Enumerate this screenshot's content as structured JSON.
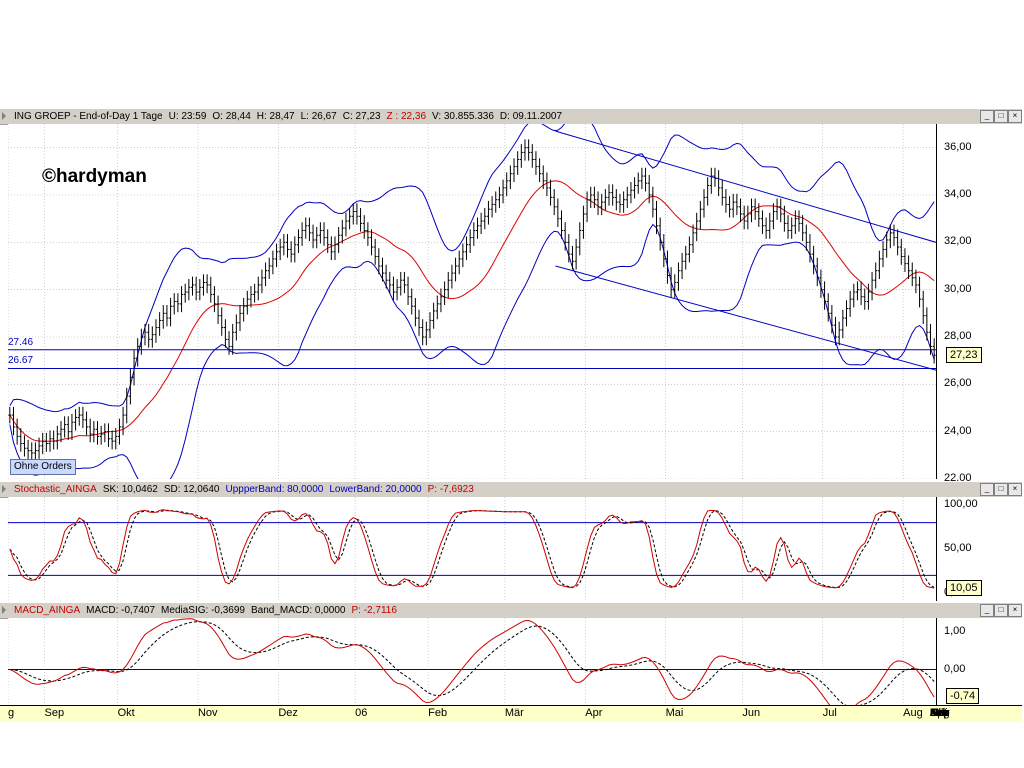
{
  "price_panel": {
    "header": [
      {
        "text": "ING GROEP - End-of-Day 1 Tage",
        "color": "black"
      },
      {
        "text": "U: 23:59",
        "color": "black"
      },
      {
        "text": "O: 28,44",
        "color": "black"
      },
      {
        "text": "H: 28,47",
        "color": "black"
      },
      {
        "text": "L: 26,67",
        "color": "black"
      },
      {
        "text": "C: 27,23",
        "color": "black"
      },
      {
        "text": "Z : 22,36",
        "color": "red"
      },
      {
        "text": "V: 30.855.336",
        "color": "black"
      },
      {
        "text": "D: 09.11.2007",
        "color": "black"
      }
    ],
    "watermark": "©hardyman",
    "button": "Ohne Orders",
    "last_value": "27,23",
    "hlines": [
      {
        "label": "27.46",
        "value": 27.46
      },
      {
        "label": "26.67",
        "value": 26.67
      }
    ],
    "yticks": [
      "22,00",
      "24,00",
      "26,00",
      "28,00",
      "30,00",
      "32,00",
      "34,00",
      "36,00"
    ]
  },
  "stoch_panel": {
    "header": [
      {
        "text": "Stochastic_AINGA",
        "color": "red"
      },
      {
        "text": "SK: 10,0462",
        "color": "black"
      },
      {
        "text": "SD: 12,0640",
        "color": "black"
      },
      {
        "text": "UppperBand: 80,0000",
        "color": "blue"
      },
      {
        "text": "LowerBand: 20,0000",
        "color": "blue"
      },
      {
        "text": "P: -7,6923",
        "color": "red"
      }
    ],
    "last_value": "10,05",
    "yticks": [
      "0,00",
      "50,00",
      "100,00"
    ]
  },
  "macd_panel": {
    "header": [
      {
        "text": "MACD_AINGA",
        "color": "red"
      },
      {
        "text": "MACD: -0,7407",
        "color": "black"
      },
      {
        "text": "MediaSIG: -0,3699",
        "color": "black"
      },
      {
        "text": "Band_MACD: 0,0000",
        "color": "black"
      },
      {
        "text": "P: -2,7116",
        "color": "red"
      }
    ],
    "last_value": "-0,74",
    "yticks": [
      "1,00",
      "0,00"
    ]
  },
  "window_buttons": [
    "_",
    "□",
    "×"
  ],
  "xaxis": {
    "labels": [
      "g",
      "Sep",
      "Okt",
      "Nov",
      "Dez",
      "06",
      "Feb",
      "Mär",
      "Apr",
      "Mai",
      "Jun",
      "Jul",
      "Aug",
      "Sep",
      "Okt",
      "Nov",
      "Dez",
      "Feb",
      "Mär",
      "Apr",
      "Mai",
      "Jun",
      "Jul",
      "Aug",
      "Sep",
      "Nov"
    ],
    "label_index": [
      0,
      10,
      30,
      52,
      74,
      95,
      115,
      136,
      158,
      180,
      201,
      223,
      245,
      266,
      288,
      310,
      330,
      374,
      394,
      416,
      437,
      458,
      480,
      502,
      522,
      565
    ]
  },
  "chart_data": {
    "type": "line",
    "title": "ING GROEP - End-of-Day 1 Tage",
    "ylim": [
      22,
      37
    ],
    "close": [
      24.7,
      24.2,
      23.8,
      23.5,
      23.3,
      23.2,
      23.1,
      23.2,
      23.4,
      23.6,
      23.5,
      23.7,
      23.6,
      23.9,
      24.1,
      24.3,
      24.0,
      24.4,
      24.6,
      24.7,
      24.5,
      24.2,
      23.9,
      24.1,
      23.8,
      23.9,
      24.0,
      23.7,
      23.6,
      23.8,
      24.2,
      24.7,
      25.5,
      26.3,
      27.1,
      27.6,
      28.0,
      28.2,
      27.9,
      28.1,
      28.4,
      28.7,
      29.0,
      28.8,
      29.3,
      29.5,
      29.4,
      29.8,
      29.9,
      30.1,
      30.2,
      29.9,
      30.1,
      30.3,
      30.2,
      29.8,
      29.4,
      28.9,
      28.4,
      27.9,
      27.6,
      28.2,
      28.6,
      29.0,
      29.3,
      29.6,
      29.8,
      29.9,
      30.2,
      30.5,
      30.8,
      31.0,
      31.3,
      31.6,
      31.8,
      32.0,
      31.7,
      31.5,
      31.9,
      32.2,
      32.5,
      32.7,
      32.4,
      32.1,
      32.3,
      32.5,
      32.2,
      31.9,
      31.6,
      31.9,
      32.3,
      32.6,
      32.9,
      33.1,
      33.3,
      33.1,
      32.8,
      32.5,
      32.2,
      31.8,
      31.4,
      31.0,
      30.7,
      30.4,
      30.2,
      29.9,
      30.1,
      30.4,
      30.2,
      29.7,
      29.3,
      28.8,
      28.4,
      28.0,
      28.3,
      28.7,
      29.1,
      29.4,
      29.7,
      30.0,
      30.4,
      30.7,
      31.0,
      31.3,
      31.6,
      31.9,
      32.2,
      32.5,
      32.7,
      32.9,
      33.1,
      33.4,
      33.6,
      33.8,
      34.0,
      34.3,
      34.6,
      34.9,
      35.2,
      35.5,
      35.8,
      36.0,
      35.8,
      35.5,
      35.2,
      34.9,
      34.6,
      34.3,
      33.9,
      33.5,
      33.0,
      32.5,
      32.0,
      31.5,
      31.2,
      31.8,
      32.5,
      33.2,
      33.8,
      34.0,
      33.8,
      33.5,
      33.7,
      33.9,
      34.1,
      33.9,
      33.7,
      33.6,
      33.8,
      34.0,
      34.2,
      34.4,
      34.6,
      34.8,
      34.5,
      34.0,
      33.4,
      32.7,
      32.0,
      31.3,
      30.6,
      30.0,
      30.3,
      30.8,
      31.2,
      31.5,
      31.9,
      32.4,
      32.9,
      33.4,
      33.9,
      34.4,
      34.8,
      34.7,
      34.3,
      33.9,
      33.6,
      33.4,
      33.7,
      33.5,
      33.2,
      32.9,
      33.2,
      33.5,
      33.3,
      33.0,
      32.7,
      32.5,
      32.9,
      33.3,
      33.5,
      33.2,
      32.8,
      32.5,
      32.7,
      33.0,
      32.8,
      32.4,
      32.0,
      31.5,
      31.0,
      30.5,
      30.0,
      29.5,
      29.0,
      28.5,
      28.0,
      28.3,
      28.8,
      29.2,
      29.6,
      29.9,
      30.0,
      29.7,
      29.5,
      29.9,
      30.4,
      30.8,
      31.3,
      31.7,
      32.1,
      32.4,
      32.2,
      31.8,
      31.4,
      31.1,
      30.8,
      30.5,
      30.2,
      29.6,
      28.9,
      28.2,
      27.6,
      27.23
    ]
  }
}
